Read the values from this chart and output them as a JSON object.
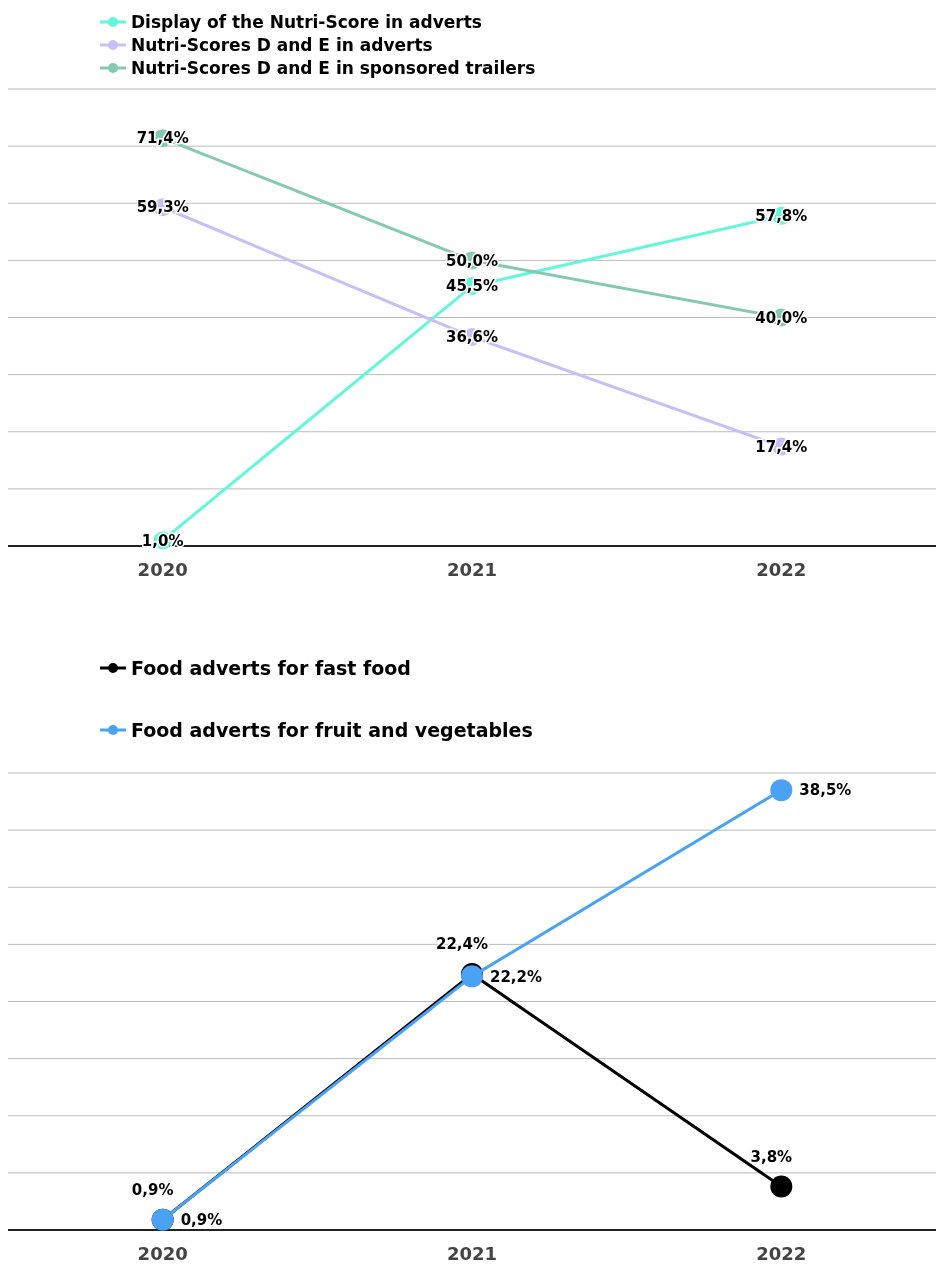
{
  "chart_data": [
    {
      "type": "line",
      "categories": [
        "2020",
        "2021",
        "2022"
      ],
      "series": [
        {
          "name": "Display of the Nutri-Score in adverts",
          "color": "#62f7d9",
          "values": [
            1.0,
            45.5,
            57.8
          ],
          "value_labels": [
            "1,0%",
            "45,5%",
            "57,8%"
          ]
        },
        {
          "name": "Nutri-Scores D and E in adverts",
          "color": "#c9bef5",
          "values": [
            59.3,
            36.6,
            17.4
          ],
          "value_labels": [
            "59,3%",
            "36,6%",
            "17,4%"
          ]
        },
        {
          "name": "Nutri-Scores D and E in sponsored trailers",
          "color": "#86c9b3",
          "values": [
            71.4,
            50.0,
            40.0
          ],
          "value_labels": [
            "71,4%",
            "50,0%",
            "40,0%"
          ]
        }
      ],
      "ylim": [
        0,
        80
      ],
      "yticks": [
        {
          "value": 0,
          "label": null
        },
        {
          "value": 10,
          "label": null
        },
        {
          "value": 20,
          "label": null
        },
        {
          "value": 30,
          "label": null
        },
        {
          "value": 40,
          "label": null
        },
        {
          "value": 50,
          "label": null
        },
        {
          "value": 60,
          "label": null
        },
        {
          "value": 70,
          "label": null
        },
        {
          "value": 80,
          "label": null
        }
      ],
      "tick_labels": "x",
      "grid": "y",
      "legend": "top left",
      "marker": "circle",
      "line_style": "solid"
    },
    {
      "type": "line",
      "categories": [
        "2020",
        "2021",
        "2022"
      ],
      "series": [
        {
          "name": "Food adverts for fast food",
          "color": "#000000",
          "values": [
            0.9,
            22.4,
            3.8
          ],
          "value_labels": [
            "0,9%",
            "22,4%",
            "3,8%"
          ]
        },
        {
          "name": "Food adverts for fruit and vegetables",
          "color": "#4aa2f5",
          "values": [
            0.9,
            22.2,
            38.5
          ],
          "value_labels": [
            "0,9%",
            "22,2%",
            "38,5%"
          ]
        }
      ],
      "ylim": [
        0,
        40
      ],
      "yticks": [
        {
          "value": 0,
          "label": null
        },
        {
          "value": 5,
          "label": null
        },
        {
          "value": 10,
          "label": null
        },
        {
          "value": 15,
          "label": null
        },
        {
          "value": 20,
          "label": null
        },
        {
          "value": 25,
          "label": null
        },
        {
          "value": 30,
          "label": null
        },
        {
          "value": 35,
          "label": null
        },
        {
          "value": 40,
          "label": null
        }
      ],
      "tick_labels": "x",
      "grid": "y",
      "legend": "top left",
      "marker": "circle",
      "line_style": "solid"
    }
  ]
}
